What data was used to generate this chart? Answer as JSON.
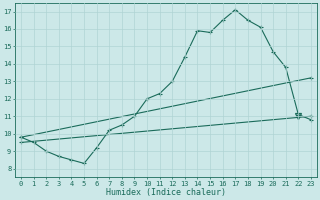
{
  "xlabel": "Humidex (Indice chaleur)",
  "x_ticks": [
    0,
    1,
    2,
    3,
    4,
    5,
    6,
    7,
    8,
    9,
    10,
    11,
    12,
    13,
    14,
    15,
    16,
    17,
    18,
    19,
    20,
    21,
    22,
    23
  ],
  "xlim": [
    -0.5,
    23.5
  ],
  "ylim": [
    7.5,
    17.5
  ],
  "y_ticks": [
    8,
    9,
    10,
    11,
    12,
    13,
    14,
    15,
    16,
    17
  ],
  "bg_color": "#cce8e8",
  "grid_color": "#b0d4d4",
  "line_color": "#1a6b5a",
  "line1_x": [
    0,
    1,
    2,
    3,
    4,
    5,
    6,
    7,
    8,
    9,
    10,
    11,
    12,
    13,
    14,
    15,
    16,
    17,
    18,
    19,
    20,
    21,
    22,
    23
  ],
  "line1_y": [
    9.8,
    9.5,
    9.0,
    8.7,
    8.5,
    8.3,
    9.2,
    10.2,
    10.5,
    11.0,
    12.0,
    12.3,
    13.0,
    14.4,
    15.9,
    15.8,
    16.5,
    17.1,
    16.5,
    16.1,
    14.7,
    13.8,
    11.1,
    10.8
  ],
  "line2_x": [
    0,
    23
  ],
  "line2_y": [
    9.5,
    11.0
  ],
  "line3_x": [
    0,
    23
  ],
  "line3_y": [
    9.8,
    13.2
  ],
  "marker_triangle_x": [
    22
  ],
  "marker_triangle_y": [
    11.0
  ]
}
